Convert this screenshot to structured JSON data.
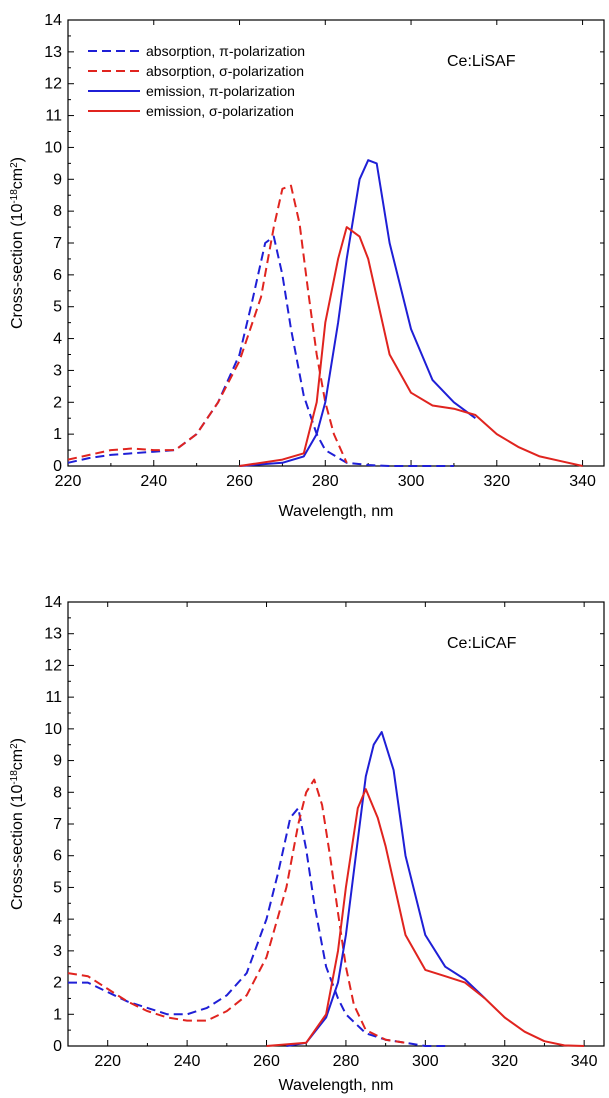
{
  "chart_data": [
    {
      "type": "line",
      "annotation": "Ce:LiSAF",
      "xlabel": "Wavelength, nm",
      "ylabel": "Cross-section (10-18cm2)",
      "ylabel_parts": {
        "pre": "Cross-section (10",
        "exp1": "-18",
        "mid": "cm",
        "exp2": "2",
        "post": ")"
      },
      "xlim": [
        220,
        345
      ],
      "ylim": [
        0,
        14
      ],
      "xticks": [
        "220",
        "240",
        "260",
        "280",
        "300",
        "320",
        "340"
      ],
      "yticks": [
        "0",
        "1",
        "2",
        "3",
        "4",
        "5",
        "6",
        "7",
        "8",
        "9",
        "10",
        "11",
        "12",
        "13",
        "14"
      ],
      "legend_position": "top-left",
      "series": [
        {
          "name": "absorption, π-polarization",
          "color": "#1f1fd6",
          "dash": true,
          "x": [
            220,
            225,
            230,
            235,
            240,
            245,
            250,
            255,
            260,
            263,
            266,
            268,
            270,
            272,
            275,
            278,
            280,
            285,
            290,
            295,
            300,
            305,
            310
          ],
          "y": [
            0.1,
            0.25,
            0.35,
            0.4,
            0.45,
            0.5,
            1.0,
            2.0,
            3.5,
            5.2,
            7.0,
            7.2,
            6.0,
            4.3,
            2.2,
            1.0,
            0.5,
            0.1,
            0.03,
            0.0,
            0.0,
            0.0,
            0.0
          ]
        },
        {
          "name": "absorption, σ-polarization",
          "color": "#e0241f",
          "dash": true,
          "x": [
            220,
            225,
            230,
            235,
            240,
            245,
            250,
            255,
            260,
            265,
            268,
            270,
            272,
            274,
            276,
            278,
            280,
            282,
            285
          ],
          "y": [
            0.2,
            0.35,
            0.5,
            0.55,
            0.5,
            0.5,
            1.0,
            2.0,
            3.3,
            5.3,
            7.5,
            8.7,
            8.8,
            7.6,
            5.5,
            3.5,
            2.0,
            1.0,
            0.1
          ]
        },
        {
          "name": "emission, π-polarization",
          "color": "#1f1fd6",
          "dash": false,
          "x": [
            260,
            270,
            275,
            278,
            280,
            283,
            285,
            288,
            290,
            292,
            295,
            300,
            305,
            310,
            315
          ],
          "y": [
            0.0,
            0.1,
            0.3,
            1.0,
            2.0,
            4.5,
            6.5,
            9.0,
            9.6,
            9.5,
            7.0,
            4.3,
            2.7,
            2.0,
            1.5
          ]
        },
        {
          "name": "emission, σ-polarization",
          "color": "#e0241f",
          "dash": false,
          "x": [
            260,
            270,
            275,
            278,
            280,
            283,
            285,
            288,
            290,
            295,
            300,
            305,
            310,
            315,
            320,
            325,
            330,
            335,
            340
          ],
          "y": [
            0.0,
            0.2,
            0.4,
            2.0,
            4.5,
            6.5,
            7.5,
            7.2,
            6.5,
            3.5,
            2.3,
            1.9,
            1.8,
            1.6,
            1.0,
            0.6,
            0.3,
            0.15,
            0.0
          ]
        }
      ]
    },
    {
      "type": "line",
      "annotation": "Ce:LiCAF",
      "xlabel": "Wavelength, nm",
      "ylabel": "Cross-section (10-18cm2)",
      "ylabel_parts": {
        "pre": "Cross-section (10",
        "exp1": "-18",
        "mid": "cm",
        "exp2": "2",
        "post": ")"
      },
      "xlim": [
        210,
        345
      ],
      "ylim": [
        0,
        14
      ],
      "xticks": [
        "220",
        "240",
        "260",
        "280",
        "300",
        "320",
        "340"
      ],
      "yticks": [
        "0",
        "1",
        "2",
        "3",
        "4",
        "5",
        "6",
        "7",
        "8",
        "9",
        "10",
        "11",
        "12",
        "13",
        "14"
      ],
      "series": [
        {
          "name": "absorption, π-polarization",
          "color": "#1f1fd6",
          "dash": true,
          "x": [
            210,
            215,
            220,
            225,
            230,
            235,
            240,
            245,
            250,
            255,
            260,
            263,
            266,
            268,
            270,
            272,
            275,
            278,
            280,
            285,
            290,
            295,
            300,
            305
          ],
          "y": [
            2.0,
            2.0,
            1.7,
            1.4,
            1.2,
            1.0,
            1.0,
            1.2,
            1.6,
            2.3,
            4.0,
            5.5,
            7.2,
            7.5,
            6.2,
            4.5,
            2.5,
            1.5,
            1.0,
            0.4,
            0.2,
            0.1,
            0.0,
            0.0
          ]
        },
        {
          "name": "absorption, σ-polarization",
          "color": "#e0241f",
          "dash": true,
          "x": [
            210,
            215,
            220,
            225,
            230,
            235,
            240,
            245,
            250,
            255,
            260,
            265,
            268,
            270,
            272,
            274,
            276,
            278,
            280,
            282,
            285,
            290,
            295
          ],
          "y": [
            2.3,
            2.2,
            1.8,
            1.4,
            1.1,
            0.9,
            0.8,
            0.8,
            1.1,
            1.6,
            2.8,
            5.0,
            7.0,
            8.0,
            8.4,
            7.6,
            6.0,
            4.2,
            2.5,
            1.3,
            0.5,
            0.2,
            0.1
          ]
        },
        {
          "name": "emission, π-polarization",
          "color": "#1f1fd6",
          "dash": false,
          "x": [
            265,
            270,
            275,
            278,
            280,
            283,
            285,
            287,
            289,
            292,
            295,
            300,
            305,
            310,
            315
          ],
          "y": [
            0.0,
            0.1,
            0.9,
            2.0,
            3.5,
            6.5,
            8.5,
            9.5,
            9.9,
            8.7,
            6.0,
            3.5,
            2.5,
            2.1,
            1.5
          ]
        },
        {
          "name": "emission, σ-polarization",
          "color": "#e0241f",
          "dash": false,
          "x": [
            260,
            270,
            275,
            278,
            280,
            283,
            285,
            288,
            290,
            295,
            300,
            305,
            310,
            315,
            320,
            325,
            330,
            335,
            340
          ],
          "y": [
            0.0,
            0.1,
            1.0,
            3.0,
            5.0,
            7.5,
            8.1,
            7.2,
            6.3,
            3.5,
            2.4,
            2.2,
            2.0,
            1.5,
            0.9,
            0.45,
            0.15,
            0.02,
            0.0
          ]
        }
      ]
    }
  ]
}
